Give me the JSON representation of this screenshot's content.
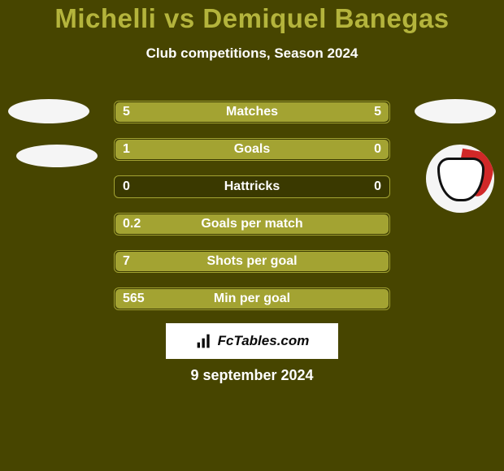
{
  "header": {
    "title": "Michelli vs Demiquel Banegas",
    "subtitle": "Club competitions, Season 2024"
  },
  "bar_colors": {
    "fill": "#a3a332",
    "track": "#3a3900",
    "border": "#a3a332"
  },
  "text_colors": {
    "title": "#b4b43c",
    "label": "#ffffff",
    "value": "#ffffff"
  },
  "background_color": "#474500",
  "font_sizes": {
    "title": 33,
    "subtitle": 17,
    "row": 16,
    "date": 18
  },
  "rows": [
    {
      "label": "Matches",
      "left": "5",
      "right": "5",
      "left_pct": 50,
      "right_pct": 50
    },
    {
      "label": "Goals",
      "left": "1",
      "right": "0",
      "left_pct": 100,
      "right_pct": 0
    },
    {
      "label": "Hattricks",
      "left": "0",
      "right": "0",
      "left_pct": 0,
      "right_pct": 0
    },
    {
      "label": "Goals per match",
      "left": "0.2",
      "right": "",
      "left_pct": 100,
      "right_pct": 0
    },
    {
      "label": "Shots per goal",
      "left": "7",
      "right": "",
      "left_pct": 100,
      "right_pct": 0
    },
    {
      "label": "Min per goal",
      "left": "565",
      "right": "",
      "left_pct": 100,
      "right_pct": 0
    }
  ],
  "watermark": "FcTables.com",
  "date": "9 september 2024",
  "badges": {
    "left1": {
      "shape": "ellipse",
      "bg": "#f5f5f5"
    },
    "left2": {
      "shape": "ellipse",
      "bg": "#f5f5f5"
    },
    "right1": {
      "shape": "ellipse",
      "bg": "#f5f5f5"
    },
    "right2": {
      "shape": "shield",
      "bg": "#f5f5f5",
      "accent": "#d12828",
      "stroke": "#111111"
    }
  }
}
